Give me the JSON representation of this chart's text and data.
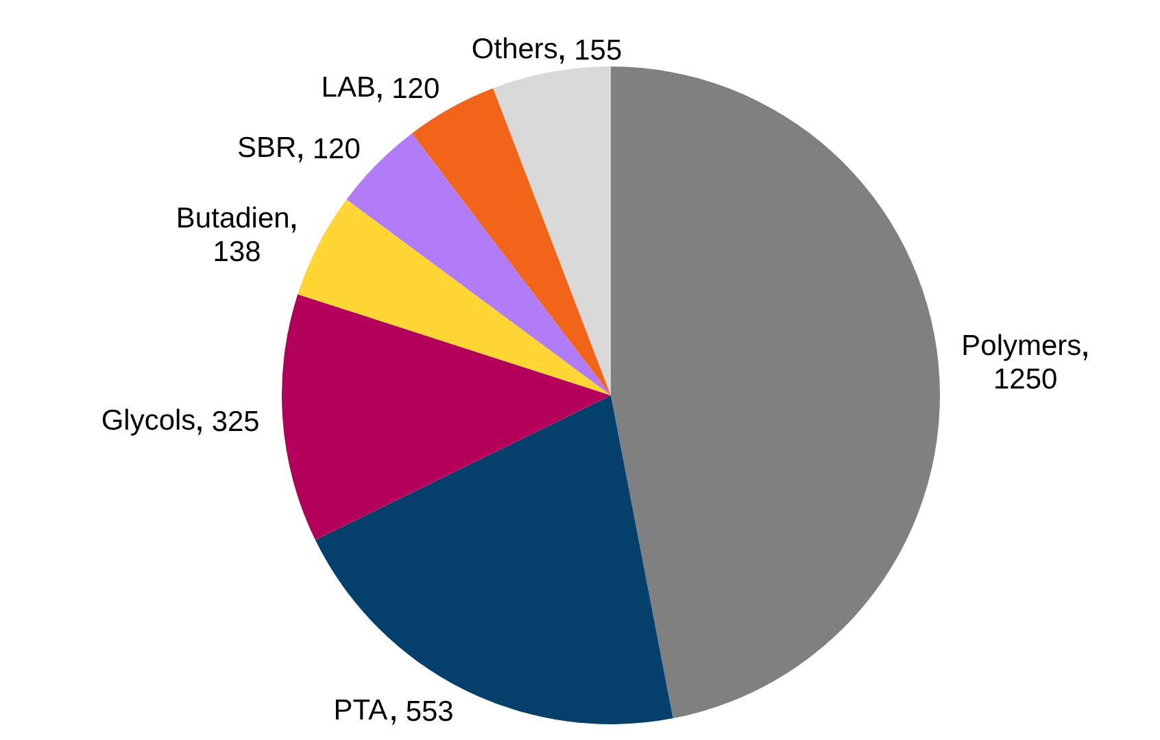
{
  "chart_data": {
    "type": "pie",
    "categories": [
      "Polymers",
      "PTA",
      "Glycols",
      "Butadien",
      "SBR",
      "LAB",
      "Others"
    ],
    "values": [
      1250,
      553,
      325,
      138,
      120,
      120,
      155
    ],
    "colors": [
      "#808080",
      "#053f6b",
      "#b5005b",
      "#ffd633",
      "#b07cf8",
      "#f26418",
      "#d9d9d9"
    ],
    "data_labels": true
  }
}
